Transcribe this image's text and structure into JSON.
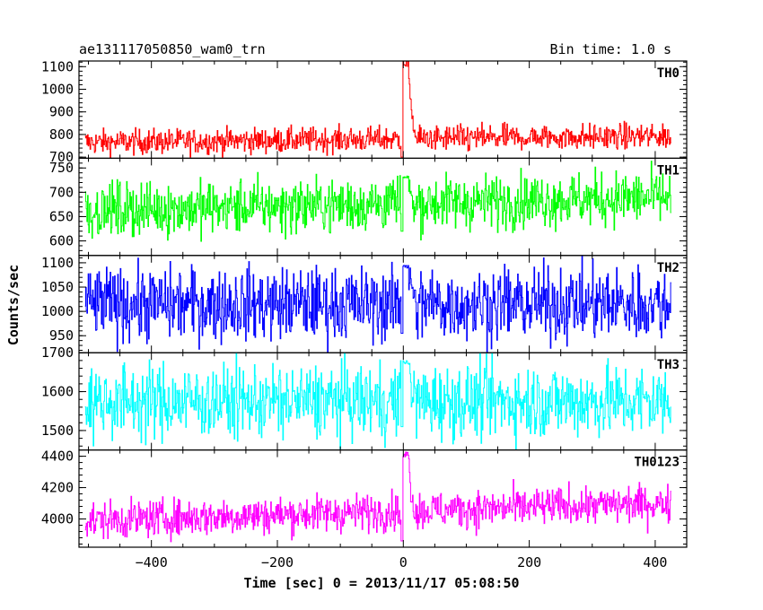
{
  "chart_data": {
    "type": "line",
    "title": "ae131117050850_wam0_trn",
    "bin_time": "Bin time: 1.0 s",
    "xlabel": "Time [sec] 0 = 2013/11/17 05:08:50",
    "ylabel": "Counts/sec",
    "xlim": [
      -515,
      450
    ],
    "x_data_range": [
      -505,
      425
    ],
    "xticks": [
      -400,
      -200,
      0,
      200,
      400
    ],
    "grid": false,
    "panels": [
      {
        "name": "TH0",
        "color": "#ff0000",
        "ylim": [
          695,
          1125
        ],
        "yticks": [
          700,
          800,
          900,
          1000,
          1100
        ],
        "baseline": 765,
        "trend": 0.03,
        "noise": 28,
        "burst": {
          "peak": 1130,
          "dip": 700
        }
      },
      {
        "name": "TH1",
        "color": "#00ff00",
        "ylim": [
          570,
          770
        ],
        "yticks": [
          600,
          650,
          700,
          750
        ],
        "baseline": 662,
        "trend": 0.03,
        "noise": 28,
        "burst": {
          "peak": 735,
          "dip": 620
        }
      },
      {
        "name": "TH2",
        "color": "#0000ff",
        "ylim": [
          915,
          1115
        ],
        "yticks": [
          950,
          1000,
          1050,
          1100
        ],
        "baseline": 1015,
        "trend": 0.0,
        "noise": 38,
        "burst": {
          "peak": 1095,
          "dip": 955
        }
      },
      {
        "name": "TH3",
        "color": "#00ffff",
        "ylim": [
          1450,
          1700
        ],
        "yticks": [
          1500,
          1600,
          1700
        ],
        "baseline": 1575,
        "trend": 0.0,
        "noise": 48,
        "burst": {
          "peak": 1680,
          "dip": 1510
        }
      },
      {
        "name": "TH0123",
        "color": "#ff00ff",
        "ylim": [
          3820,
          4440
        ],
        "yticks": [
          4000,
          4200,
          4400
        ],
        "baseline": 3990,
        "trend": 0.12,
        "noise": 60,
        "burst": {
          "peak": 4430,
          "dip": 3860
        }
      }
    ]
  }
}
